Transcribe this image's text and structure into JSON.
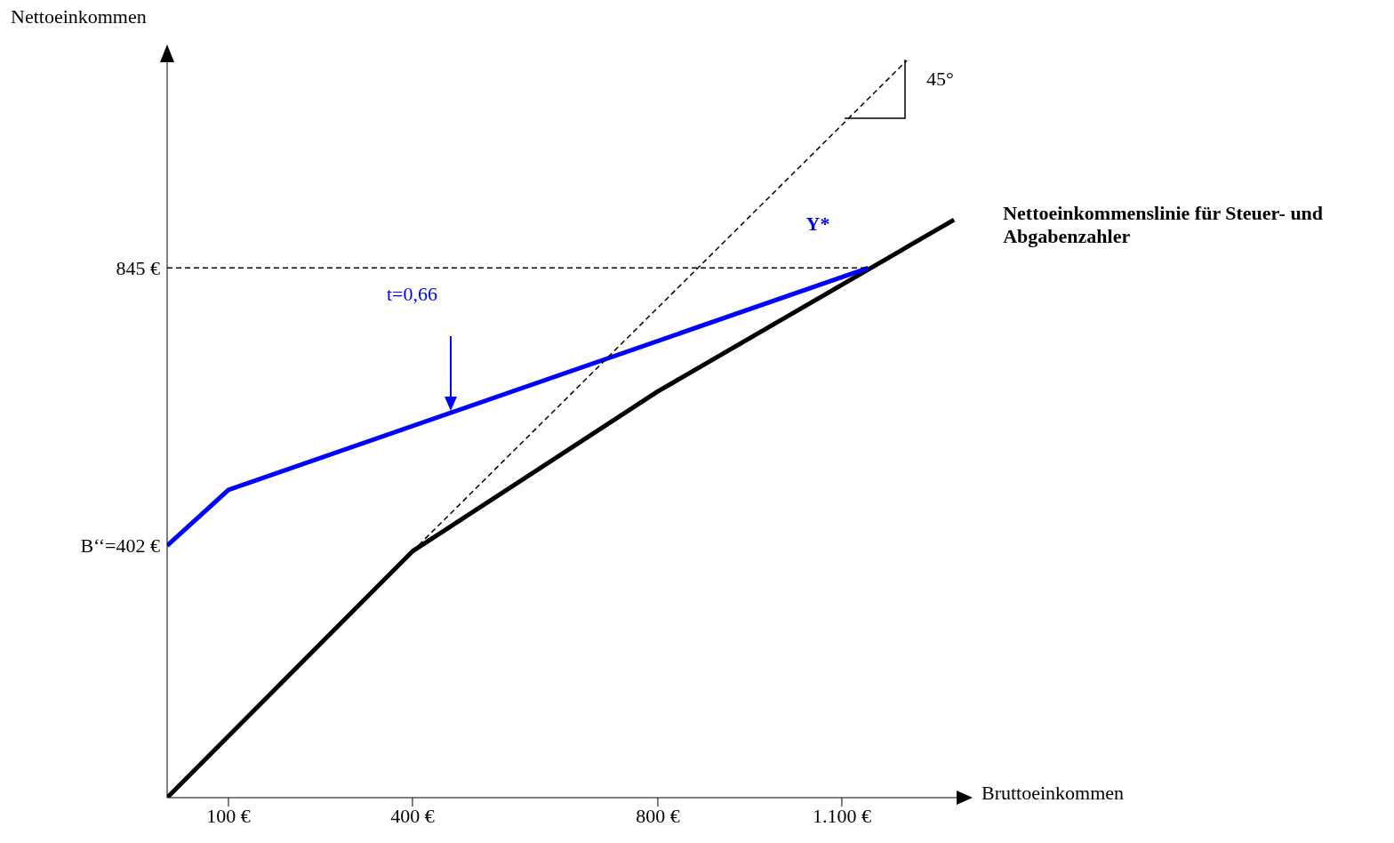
{
  "chart_data": {
    "type": "line",
    "xlabel": "Bruttoeinkommen",
    "ylabel": "Nettoeinkommen",
    "xlim": [
      0,
      1290
    ],
    "ylim": [
      0,
      1176
    ],
    "xticks": [
      {
        "value": 100,
        "label": "100 €"
      },
      {
        "value": 400,
        "label": "400 €"
      },
      {
        "value": 800,
        "label": "800 €"
      },
      {
        "value": 1100,
        "label": "1.100 €"
      }
    ],
    "yticks": [
      {
        "value": 402,
        "label": "B‘‘=402 €"
      },
      {
        "value": 845,
        "label": "845 €"
      }
    ],
    "grid": false,
    "marker": "none",
    "series": [
      {
        "name": "Nettoeinkommenslinie für Steuer- und Abgabenzahler",
        "color": "#000000",
        "line_style": "solid",
        "x": [
          0,
          400,
          800,
          1283
        ],
        "values": [
          0,
          393,
          648,
          922
        ]
      },
      {
        "color": "#0000ff",
        "line_style": "solid",
        "x": [
          0,
          100,
          1143
        ],
        "values": [
          402,
          491,
          845
        ]
      },
      {
        "color": "#000000",
        "line_style": "dashed",
        "x": [
          400,
          1206
        ],
        "values": [
          393,
          1176
        ]
      },
      {
        "color": "#000000",
        "line_style": "dashed",
        "x": [
          0,
          1143
        ],
        "values": [
          845,
          845
        ]
      }
    ],
    "annotations": [
      {
        "text": "Y*",
        "x": 1143,
        "y": 845
      },
      "t=0,66",
      {
        "text": "45°",
        "x": 1206,
        "y": 1176
      }
    ]
  }
}
